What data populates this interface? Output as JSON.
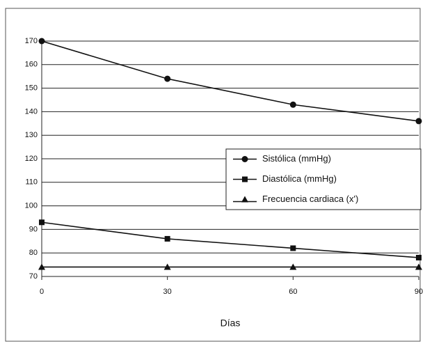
{
  "chart_data": {
    "type": "line",
    "x": [
      0,
      30,
      60,
      90
    ],
    "xlim": [
      0,
      90
    ],
    "xticks": [
      0,
      30,
      60,
      90
    ],
    "ylim": [
      70,
      170
    ],
    "yticks": [
      70,
      80,
      90,
      100,
      110,
      120,
      130,
      140,
      150,
      160,
      170
    ],
    "grid": true,
    "x_label": "Días",
    "legend": "right",
    "series": [
      {
        "name": "Sistólica (mmHg)",
        "color": "#111111",
        "marker": "circle",
        "values": [
          170,
          154,
          143,
          136
        ]
      },
      {
        "name": "Diastólica (mmHg)",
        "color": "#111111",
        "marker": "square",
        "values": [
          93,
          86,
          82,
          78
        ]
      },
      {
        "name": "Frecuencia cardiaca (x')",
        "color": "#111111",
        "marker": "triangle",
        "values": [
          74,
          74,
          74,
          74
        ]
      }
    ]
  }
}
